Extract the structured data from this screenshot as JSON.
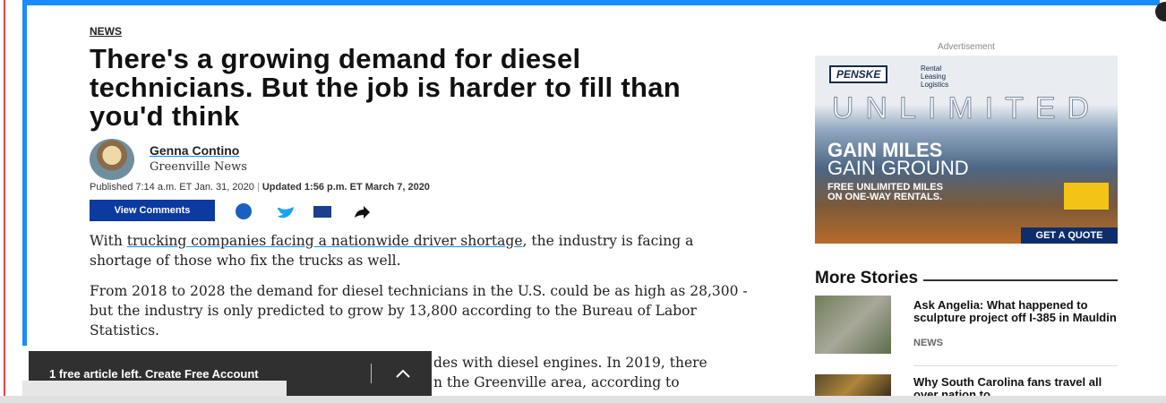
{
  "article": {
    "section": "NEWS",
    "headline": "There's a growing demand for diesel technicians. But the job is harder to fill than you'd think",
    "author": {
      "name": "Genna Contino",
      "outlet": "Greenville News"
    },
    "published": "Published 7:14 a.m. ET Jan. 31, 2020",
    "updated": "Updated 1:56 p.m. ET March 7, 2020",
    "comments_button": "View Comments",
    "paragraphs": [
      {
        "before": "With ",
        "link": "trucking companies facing a nationwide driver shortage",
        "after": ", the industry is facing a shortage of those who fix the trucks as well."
      },
      {
        "text": "From 2018 to 2028 the demand for diesel technicians in the U.S. could be as high as 28,300 - but the industry is only predicted to grow by 13,800 according to the Bureau of Labor Statistics."
      },
      {
        "lines": [
          "des with diesel engines. In 2019, there",
          "n the Greenville area, according to"
        ]
      }
    ]
  },
  "banner": {
    "text": "1 free article left. Create Free Account"
  },
  "ad": {
    "label": "Advertisement",
    "brand": "PENSKE",
    "services": [
      "Rental",
      "Leasing",
      "Logistics"
    ],
    "word": "UNLIMITED",
    "headline1": "GAIN MILES",
    "headline2": "GAIN GROUND",
    "offer": [
      "FREE UNLIMITED MILES",
      "ON ONE-WAY RENTALS."
    ],
    "cta": "GET A QUOTE"
  },
  "more_stories": {
    "title": "More Stories",
    "items": [
      {
        "title": "Ask Angelia: What happened to sculpture project off I-385 in Mauldin",
        "section": "NEWS"
      },
      {
        "title": "Why South Carolina fans travel all over nation to"
      }
    ]
  }
}
